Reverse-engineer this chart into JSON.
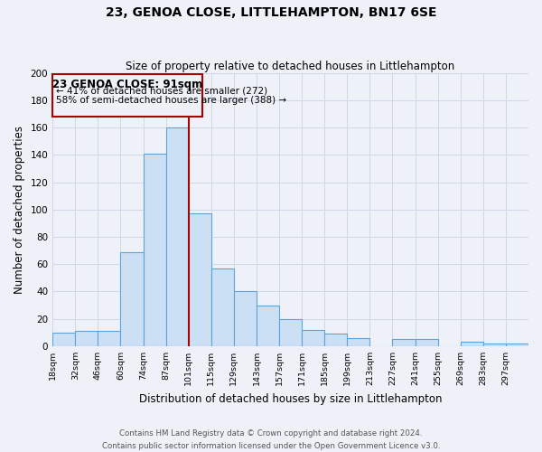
{
  "title": "23, GENOA CLOSE, LITTLEHAMPTON, BN17 6SE",
  "subtitle": "Size of property relative to detached houses in Littlehampton",
  "xlabel": "Distribution of detached houses by size in Littlehampton",
  "ylabel": "Number of detached properties",
  "bin_labels": [
    "18sqm",
    "32sqm",
    "46sqm",
    "60sqm",
    "74sqm",
    "87sqm",
    "101sqm",
    "115sqm",
    "129sqm",
    "143sqm",
    "157sqm",
    "171sqm",
    "185sqm",
    "199sqm",
    "213sqm",
    "227sqm",
    "241sqm",
    "255sqm",
    "269sqm",
    "283sqm",
    "297sqm"
  ],
  "bar_heights": [
    10,
    11,
    11,
    69,
    141,
    160,
    97,
    57,
    40,
    30,
    20,
    12,
    9,
    6,
    0,
    5,
    5,
    0,
    3,
    2,
    2
  ],
  "bar_color": "#cce0f5",
  "bar_edge_color": "#5ba3d9",
  "grid_color": "#d0d8e8",
  "background_color": "#eef2f8",
  "vline_color": "#aa0000",
  "annotation_title": "23 GENOA CLOSE: 91sqm",
  "annotation_line1": "← 41% of detached houses are smaller (272)",
  "annotation_line2": "58% of semi-detached houses are larger (388) →",
  "annotation_box_edge": "#aa0000",
  "footer_line1": "Contains HM Land Registry data © Crown copyright and database right 2024.",
  "footer_line2": "Contains public sector information licensed under the Open Government Licence v3.0.",
  "ylim": [
    0,
    200
  ],
  "yticks": [
    0,
    20,
    40,
    60,
    80,
    100,
    120,
    140,
    160,
    180,
    200
  ],
  "n_bins": 21,
  "bin_width": 1
}
